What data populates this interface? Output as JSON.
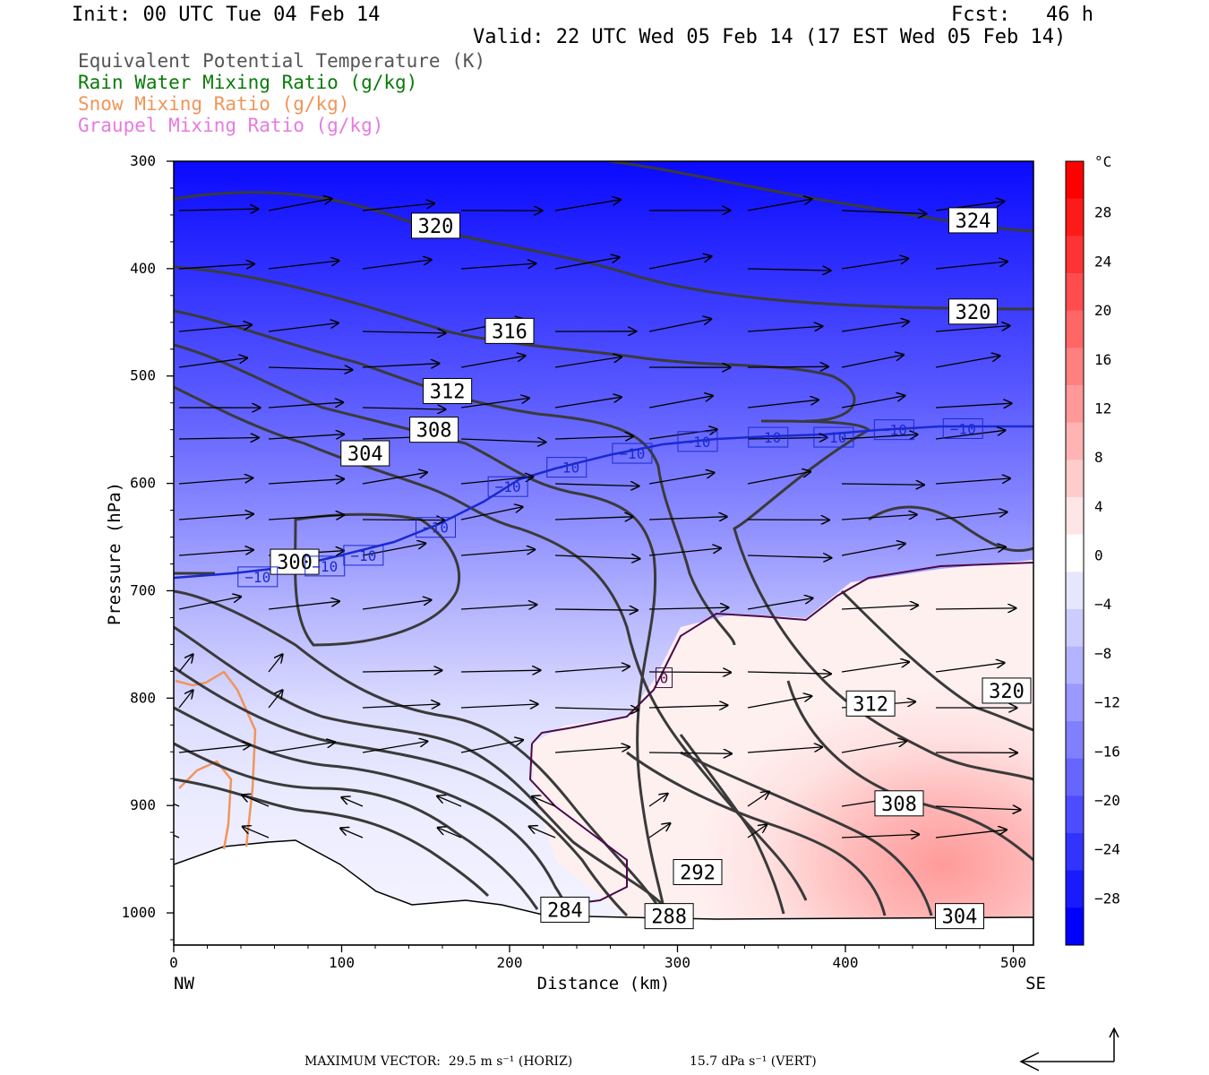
{
  "header": {
    "init": "Init: 00 UTC Tue 04 Feb 14",
    "fcst": "Fcst:   46 h",
    "valid": "Valid: 22 UTC Wed 05 Feb 14 (17 EST Wed 05 Feb 14)"
  },
  "legend": [
    {
      "label": "Equivalent Potential Temperature (K)",
      "color": "#555555"
    },
    {
      "label": "Rain Water Mixing Ratio (g/kg)",
      "color": "#0a7a0a"
    },
    {
      "label": "Snow Mixing Ratio (g/kg)",
      "color": "#f0955a"
    },
    {
      "label": "Graupel Mixing Ratio (g/kg)",
      "color": "#e77ae0"
    }
  ],
  "footer": {
    "max_vector": "MAXIMUM VECTOR:  29.5 m s⁻¹ (HORIZ)",
    "vert": "15.7 dPa s⁻¹ (VERT)"
  },
  "chart_data": {
    "type": "cross-section",
    "ylabel": "Pressure (hPa)",
    "xlabel": "Distance (km)",
    "x_left_label": "NW",
    "x_right_label": "SE",
    "xlim": [
      0,
      512
    ],
    "ylim": [
      1030,
      300
    ],
    "x_ticks": [
      0,
      100,
      200,
      300,
      400,
      500
    ],
    "y_ticks": [
      300,
      400,
      500,
      600,
      700,
      800,
      900,
      1000
    ],
    "colorbar": {
      "unit": "°C",
      "ticks": [
        28,
        24,
        20,
        16,
        12,
        8,
        4,
        0,
        -4,
        -8,
        -12,
        -16,
        -20,
        -24,
        -28
      ],
      "colors": [
        "#0000ff",
        "#1a1aff",
        "#3333ff",
        "#4d4dff",
        "#6666ff",
        "#8080ff",
        "#9999ff",
        "#b3b3ff",
        "#ccccff",
        "#e6e6ff",
        "#ffffff",
        "#ffe6e6",
        "#ffcccc",
        "#ffb3b3",
        "#ff9999",
        "#ff8080",
        "#ff6666",
        "#ff4d4d",
        "#ff3333",
        "#ff1a1a",
        "#ff0000"
      ]
    },
    "theta_e_labels": [
      {
        "text": "324",
        "x": 476,
        "p": 355
      },
      {
        "text": "320",
        "x": 156,
        "p": 360
      },
      {
        "text": "320",
        "x": 476,
        "p": 440
      },
      {
        "text": "316",
        "x": 200,
        "p": 458
      },
      {
        "text": "312",
        "x": 163,
        "p": 514
      },
      {
        "text": "308",
        "x": 155,
        "p": 550
      },
      {
        "text": "304",
        "x": 114,
        "p": 572
      },
      {
        "text": "300",
        "x": 72,
        "p": 673
      },
      {
        "text": "320",
        "x": 496,
        "p": 793
      },
      {
        "text": "312",
        "x": 415,
        "p": 805
      },
      {
        "text": "308",
        "x": 432,
        "p": 898
      },
      {
        "text": "292",
        "x": 312,
        "p": 962
      },
      {
        "text": "284",
        "x": 233,
        "p": 997
      },
      {
        "text": "288",
        "x": 295,
        "p": 1003
      },
      {
        "text": "304",
        "x": 468,
        "p": 1003
      }
    ],
    "isotherm_labels": [
      {
        "text": "−10",
        "x": 50,
        "p": 687
      },
      {
        "text": "−10",
        "x": 90,
        "p": 677
      },
      {
        "text": "−10",
        "x": 113,
        "p": 667
      },
      {
        "text": "−10",
        "x": 156,
        "p": 641
      },
      {
        "text": "−10",
        "x": 199,
        "p": 603
      },
      {
        "text": "−10",
        "x": 234,
        "p": 585
      },
      {
        "text": "−10",
        "x": 273,
        "p": 572
      },
      {
        "text": "−10",
        "x": 312,
        "p": 561
      },
      {
        "text": "−10",
        "x": 354,
        "p": 557
      },
      {
        "text": "−10",
        "x": 393,
        "p": 557
      },
      {
        "text": "−10",
        "x": 429,
        "p": 550
      },
      {
        "text": "−10",
        "x": 470,
        "p": 549
      },
      {
        "text": "0",
        "x": 292,
        "p": 781
      }
    ]
  }
}
